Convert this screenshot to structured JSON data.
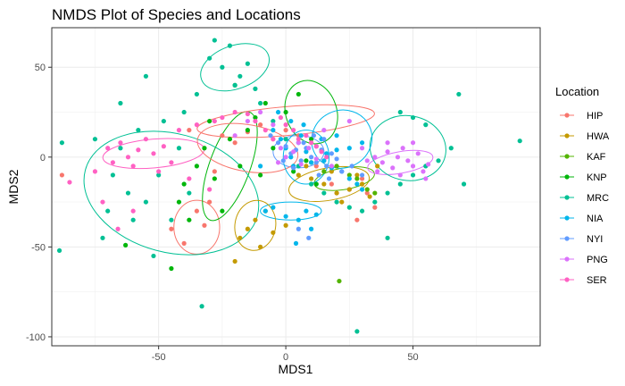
{
  "chart_data": {
    "type": "scatter",
    "title": "NMDS Plot of Species and Locations",
    "xlabel": "MDS1",
    "ylabel": "MDS2",
    "xlim": [
      -92,
      100
    ],
    "ylim": [
      -105,
      72
    ],
    "x_ticks": [
      -50,
      0,
      50
    ],
    "y_ticks": [
      -100,
      -50,
      0,
      50
    ],
    "grid": true,
    "legend_title": "Location",
    "legend_position": "right",
    "series": [
      {
        "name": "HIP",
        "color": "#F8766D",
        "points": [
          [
            -88,
            -10
          ],
          [
            -45,
            -40
          ],
          [
            -40,
            -48
          ],
          [
            -38,
            15
          ],
          [
            -35,
            -30
          ],
          [
            -30,
            -25
          ],
          [
            -25,
            12
          ],
          [
            -20,
            8
          ],
          [
            -15,
            14
          ],
          [
            -10,
            18
          ],
          [
            -5,
            10
          ],
          [
            0,
            15
          ],
          [
            5,
            12
          ],
          [
            10,
            8
          ],
          [
            12,
            -5
          ],
          [
            15,
            -2
          ],
          [
            18,
            -15
          ],
          [
            20,
            -20
          ],
          [
            25,
            -18
          ],
          [
            28,
            -35
          ],
          [
            30,
            -12
          ],
          [
            32,
            -20
          ],
          [
            35,
            -28
          ],
          [
            -32,
            -38
          ],
          [
            -28,
            -8
          ]
        ],
        "ellipse": {
          "cx": -35,
          "cy": -39,
          "rx": 9,
          "ry": 15,
          "angle": 0
        }
      },
      {
        "name": "HWA",
        "color": "#C49A00",
        "points": [
          [
            -20,
            -58
          ],
          [
            -18,
            -45
          ],
          [
            -15,
            -40
          ],
          [
            -12,
            -35
          ],
          [
            -8,
            -30
          ],
          [
            -5,
            -42
          ],
          [
            0,
            -38
          ],
          [
            5,
            -10
          ],
          [
            8,
            -5
          ],
          [
            10,
            -12
          ],
          [
            15,
            -15
          ],
          [
            18,
            -8
          ],
          [
            20,
            -20
          ],
          [
            22,
            -25
          ],
          [
            25,
            -18
          ],
          [
            28,
            -10
          ],
          [
            30,
            -15
          ],
          [
            33,
            -22
          ],
          [
            36,
            -5
          ],
          [
            -10,
            -50
          ]
        ],
        "ellipse": {
          "cx": 17,
          "cy": -15,
          "rx": 16,
          "ry": 9,
          "angle": -10
        }
      },
      {
        "name": "KAF",
        "color": "#53B400",
        "points": [
          [
            21,
            -69
          ],
          [
            15,
            -8
          ],
          [
            20,
            -5
          ],
          [
            25,
            -10
          ],
          [
            28,
            -12
          ],
          [
            32,
            -18
          ],
          [
            35,
            -20
          ],
          [
            10,
            -3
          ]
        ],
        "ellipse": {
          "cx": 23,
          "cy": -12,
          "rx": 12,
          "ry": 6,
          "angle": -10
        }
      },
      {
        "name": "KNP",
        "color": "#00B60B",
        "points": [
          [
            -63,
            -49
          ],
          [
            -45,
            -62
          ],
          [
            -42,
            -25
          ],
          [
            -40,
            -15
          ],
          [
            -38,
            -35
          ],
          [
            -35,
            -5
          ],
          [
            -32,
            5
          ],
          [
            -28,
            -12
          ],
          [
            -25,
            -30
          ],
          [
            -22,
            10
          ],
          [
            -18,
            -5
          ],
          [
            -15,
            15
          ],
          [
            -12,
            22
          ],
          [
            -10,
            -10
          ],
          [
            -8,
            30
          ],
          [
            -5,
            5
          ],
          [
            0,
            25
          ],
          [
            3,
            -8
          ],
          [
            5,
            35
          ],
          [
            8,
            -2
          ],
          [
            10,
            10
          ],
          [
            12,
            -15
          ],
          [
            -30,
            20
          ],
          [
            -20,
            40
          ]
        ],
        "ellipse": {
          "cx": -22,
          "cy": -5,
          "rx": 8,
          "ry": 32,
          "angle": 20
        }
      },
      {
        "name": "MRC",
        "color": "#00C094",
        "points": [
          [
            -88,
            8
          ],
          [
            -72,
            -45
          ],
          [
            -70,
            -30
          ],
          [
            -68,
            -10
          ],
          [
            -65,
            5
          ],
          [
            -62,
            -20
          ],
          [
            -60,
            -35
          ],
          [
            -58,
            15
          ],
          [
            -55,
            -25
          ],
          [
            -52,
            -55
          ],
          [
            -50,
            -10
          ],
          [
            -48,
            20
          ],
          [
            -45,
            -35
          ],
          [
            -42,
            5
          ],
          [
            -40,
            25
          ],
          [
            -38,
            -20
          ],
          [
            -35,
            35
          ],
          [
            -30,
            55
          ],
          [
            -28,
            65
          ],
          [
            -25,
            50
          ],
          [
            -22,
            62
          ],
          [
            -20,
            40
          ],
          [
            -18,
            45
          ],
          [
            -15,
            52
          ],
          [
            -12,
            38
          ],
          [
            -10,
            30
          ],
          [
            -5,
            20
          ],
          [
            0,
            10
          ],
          [
            5,
            -5
          ],
          [
            10,
            -15
          ],
          [
            15,
            -20
          ],
          [
            20,
            -25
          ],
          [
            25,
            -28
          ],
          [
            30,
            -30
          ],
          [
            35,
            -25
          ],
          [
            40,
            -20
          ],
          [
            45,
            -15
          ],
          [
            50,
            -10
          ],
          [
            55,
            -5
          ],
          [
            60,
            -2
          ],
          [
            65,
            5
          ],
          [
            68,
            35
          ],
          [
            70,
            -15
          ],
          [
            92,
            9
          ],
          [
            -33,
            -83
          ],
          [
            -89,
            -52
          ],
          [
            28,
            -97
          ],
          [
            40,
            -45
          ],
          [
            45,
            25
          ],
          [
            50,
            22
          ],
          [
            55,
            18
          ],
          [
            -65,
            30
          ],
          [
            -75,
            10
          ],
          [
            -55,
            45
          ]
        ],
        "ellipse": {
          "cx": -45,
          "cy": -20,
          "rx": 35,
          "ry": 33,
          "angle": 15
        }
      },
      {
        "name": "NIA",
        "color": "#00B6EB",
        "points": [
          [
            -5,
            15
          ],
          [
            -2,
            10
          ],
          [
            0,
            5
          ],
          [
            2,
            0
          ],
          [
            3,
            -5
          ],
          [
            5,
            8
          ],
          [
            6,
            12
          ],
          [
            8,
            3
          ],
          [
            10,
            -3
          ],
          [
            12,
            6
          ],
          [
            14,
            10
          ],
          [
            15,
            -2
          ],
          [
            16,
            2
          ],
          [
            18,
            -6
          ],
          [
            20,
            4
          ],
          [
            22,
            -8
          ],
          [
            25,
            -12
          ],
          [
            28,
            -15
          ],
          [
            30,
            -18
          ],
          [
            -8,
            -30
          ],
          [
            -5,
            -28
          ],
          [
            0,
            -33
          ],
          [
            5,
            -35
          ],
          [
            8,
            -30
          ],
          [
            10,
            -40
          ],
          [
            12,
            -32
          ],
          [
            4,
            -48
          ],
          [
            2,
            20
          ],
          [
            -3,
            25
          ],
          [
            7,
            18
          ],
          [
            -10,
            -5
          ],
          [
            20,
            12
          ],
          [
            25,
            5
          ],
          [
            30,
            8
          ]
        ],
        "ellipse": {
          "cx": 2,
          "cy": -30,
          "rx": 12,
          "ry": 5,
          "angle": 0
        }
      },
      {
        "name": "NYI",
        "color": "#619CFF",
        "points": [
          [
            -3,
            8
          ],
          [
            0,
            6
          ],
          [
            2,
            2
          ],
          [
            4,
            4
          ],
          [
            6,
            -2
          ],
          [
            8,
            5
          ],
          [
            10,
            0
          ],
          [
            12,
            -3
          ],
          [
            14,
            4
          ],
          [
            16,
            -5
          ],
          [
            18,
            2
          ],
          [
            20,
            -1
          ],
          [
            22,
            -8
          ],
          [
            -1,
            -2
          ],
          [
            3,
            -6
          ],
          [
            7,
            8
          ],
          [
            11,
            12
          ],
          [
            15,
            10
          ],
          [
            5,
            -40
          ],
          [
            9,
            -45
          ],
          [
            13,
            -10
          ],
          [
            17,
            -12
          ],
          [
            -6,
            12
          ],
          [
            26,
            -5
          ],
          [
            30,
            -10
          ]
        ],
        "ellipse": {
          "cx": 5,
          "cy": 3,
          "rx": 10,
          "ry": 9,
          "angle": 0
        }
      },
      {
        "name": "PNG",
        "color": "#DB72FB",
        "points": [
          [
            30,
            5
          ],
          [
            35,
            0
          ],
          [
            38,
            -3
          ],
          [
            40,
            3
          ],
          [
            42,
            -6
          ],
          [
            44,
            0
          ],
          [
            46,
            5
          ],
          [
            48,
            -2
          ],
          [
            50,
            -5
          ],
          [
            52,
            2
          ],
          [
            54,
            -8
          ],
          [
            56,
            -4
          ],
          [
            40,
            8
          ],
          [
            36,
            -8
          ],
          [
            45,
            -10
          ],
          [
            32,
            -2
          ],
          [
            50,
            8
          ],
          [
            55,
            -12
          ],
          [
            0,
            0
          ],
          [
            3,
            3
          ],
          [
            6,
            -4
          ],
          [
            9,
            5
          ],
          [
            12,
            -1
          ],
          [
            -2,
            5
          ],
          [
            5,
            8
          ],
          [
            15,
            15
          ],
          [
            18,
            -5
          ],
          [
            -5,
            18
          ],
          [
            -10,
            25
          ],
          [
            -15,
            20
          ],
          [
            -20,
            12
          ],
          [
            25,
            20
          ],
          [
            -3,
            -3
          ]
        ],
        "ellipse": {
          "cx": 45,
          "cy": -3,
          "rx": 13,
          "ry": 6,
          "angle": -10
        }
      },
      {
        "name": "SER",
        "color": "#FF61C3",
        "points": [
          [
            -75,
            -8
          ],
          [
            -70,
            5
          ],
          [
            -68,
            -3
          ],
          [
            -65,
            8
          ],
          [
            -62,
            0
          ],
          [
            -60,
            -5
          ],
          [
            -58,
            4
          ],
          [
            -55,
            10
          ],
          [
            -52,
            2
          ],
          [
            -50,
            -8
          ],
          [
            -48,
            6
          ],
          [
            -45,
            -3
          ],
          [
            -42,
            15
          ],
          [
            -38,
            -12
          ],
          [
            -35,
            18
          ],
          [
            -30,
            -18
          ],
          [
            -28,
            20
          ],
          [
            -25,
            22
          ],
          [
            -20,
            25
          ],
          [
            -15,
            24
          ],
          [
            -12,
            20
          ],
          [
            -8,
            15
          ],
          [
            -5,
            10
          ],
          [
            -2,
            22
          ],
          [
            0,
            18
          ],
          [
            3,
            15
          ],
          [
            5,
            10
          ],
          [
            8,
            12
          ],
          [
            10,
            8
          ],
          [
            12,
            6
          ],
          [
            14,
            3
          ],
          [
            16,
            0
          ],
          [
            -85,
            -14
          ],
          [
            -72,
            -25
          ],
          [
            -66,
            -40
          ],
          [
            -60,
            -30
          ]
        ],
        "ellipse": {
          "cx": -52,
          "cy": 2,
          "rx": 20,
          "ry": 8,
          "angle": -5
        }
      }
    ],
    "extra_ellipses": [
      {
        "series": "MRC",
        "cx": -20,
        "cy": 50,
        "rx": 14,
        "ry": 12,
        "angle": -20
      },
      {
        "series": "MRC",
        "cx": 48,
        "cy": 5,
        "rx": 15,
        "ry": 18,
        "angle": 10
      },
      {
        "series": "HIP",
        "cx": 0,
        "cy": 20,
        "rx": 35,
        "ry": 8,
        "angle": -5
      },
      {
        "series": "KNP",
        "cx": 10,
        "cy": 25,
        "rx": 10,
        "ry": 18,
        "angle": -20
      },
      {
        "series": "NIA",
        "cx": 22,
        "cy": 10,
        "rx": 12,
        "ry": 16,
        "angle": -25
      },
      {
        "series": "HWA",
        "cx": -12,
        "cy": -38,
        "rx": 8,
        "ry": 14,
        "angle": 10
      },
      {
        "series": "HIP",
        "cx": -15,
        "cy": 5,
        "rx": 20,
        "ry": 13,
        "angle": 10
      },
      {
        "series": "NIA",
        "cx": 8,
        "cy": 0,
        "rx": 9,
        "ry": 15,
        "angle": 0
      }
    ]
  }
}
